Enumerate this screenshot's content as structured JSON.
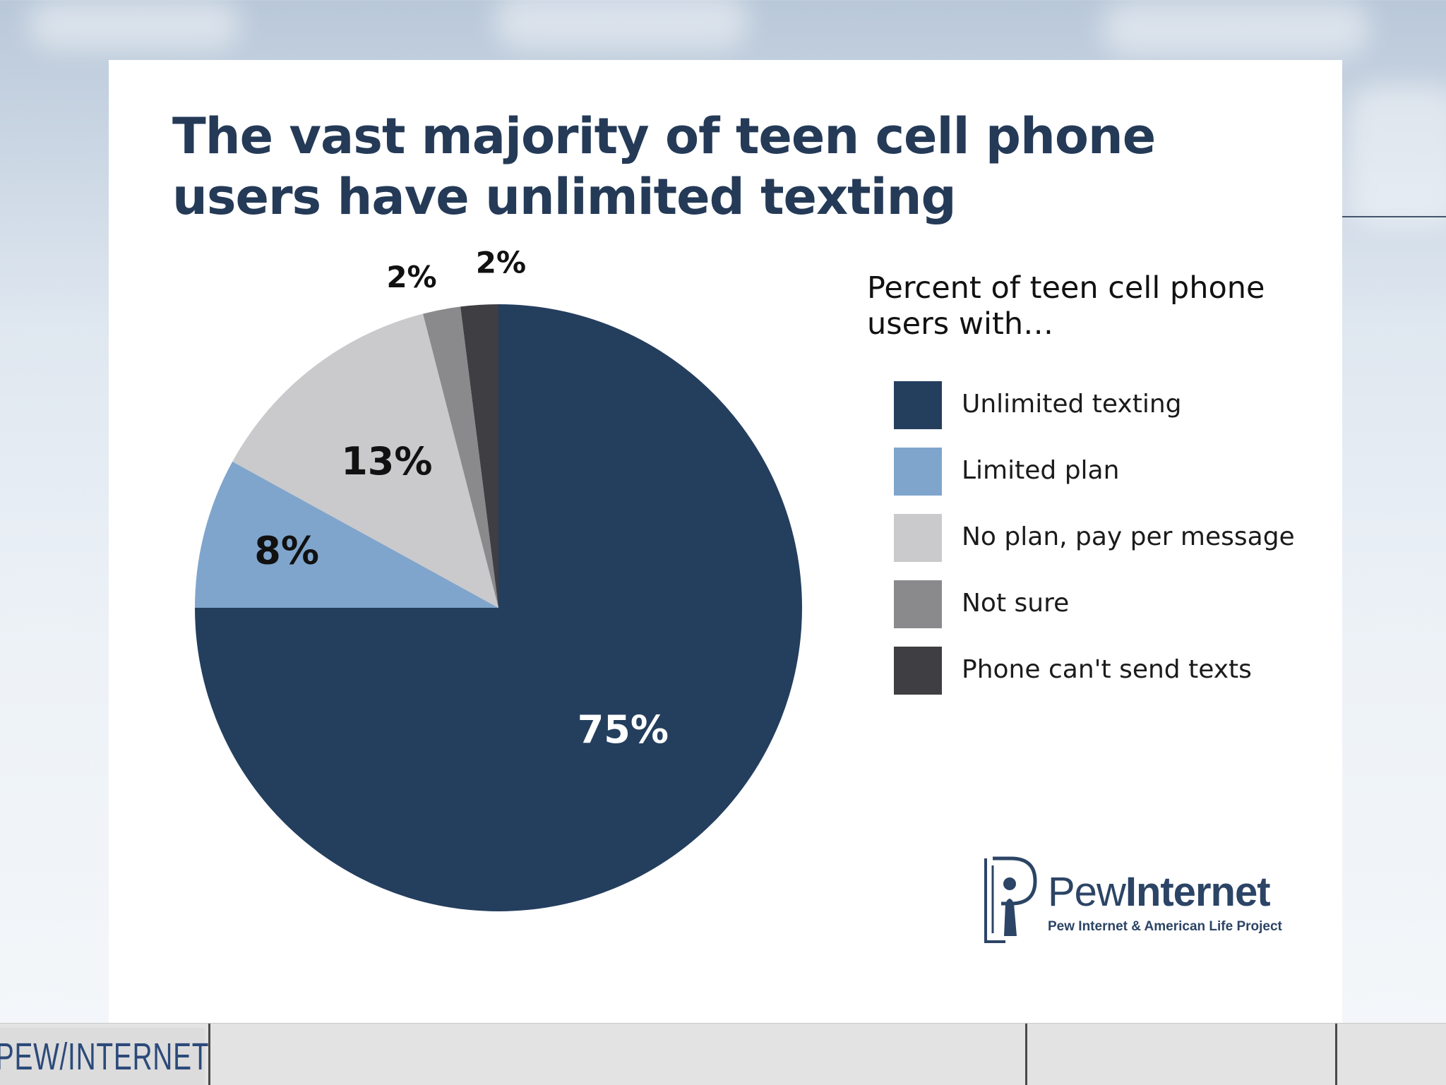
{
  "title": "The vast majority of teen cell phone users have unlimited texting",
  "legend_title": "Percent of teen cell phone users with…",
  "legend": [
    {
      "label": "Unlimited texting",
      "color": "#243e5e"
    },
    {
      "label": "Limited plan",
      "color": "#7fa5cc"
    },
    {
      "label": "No plan, pay per message",
      "color": "#cac9cc"
    },
    {
      "label": "Not sure",
      "color": "#8a898c"
    },
    {
      "label": "Phone can't send texts",
      "color": "#3f3e42"
    }
  ],
  "chart_data": {
    "type": "pie",
    "title": "The vast majority of teen cell phone users have unlimited texting",
    "legend_title": "Percent of teen cell phone users with…",
    "legend_position": "right",
    "slices": [
      {
        "label": "Unlimited texting",
        "value": 75,
        "display": "75%",
        "color": "#243e5e"
      },
      {
        "label": "Limited plan",
        "value": 8,
        "display": "8%",
        "color": "#7fa5cc"
      },
      {
        "label": "No plan, pay per message",
        "value": 13,
        "display": "13%",
        "color": "#cac9cc"
      },
      {
        "label": "Not sure",
        "value": 2,
        "display": "2%",
        "color": "#8a898c"
      },
      {
        "label": "Phone can't send texts",
        "value": 2,
        "display": "2%",
        "color": "#3f3e42"
      }
    ]
  },
  "logo": {
    "word_light": "Pew",
    "word_bold": "Internet",
    "tagline": "Pew Internet & American Life Project"
  },
  "footer": {
    "brand": "PEW/INTERNET"
  }
}
